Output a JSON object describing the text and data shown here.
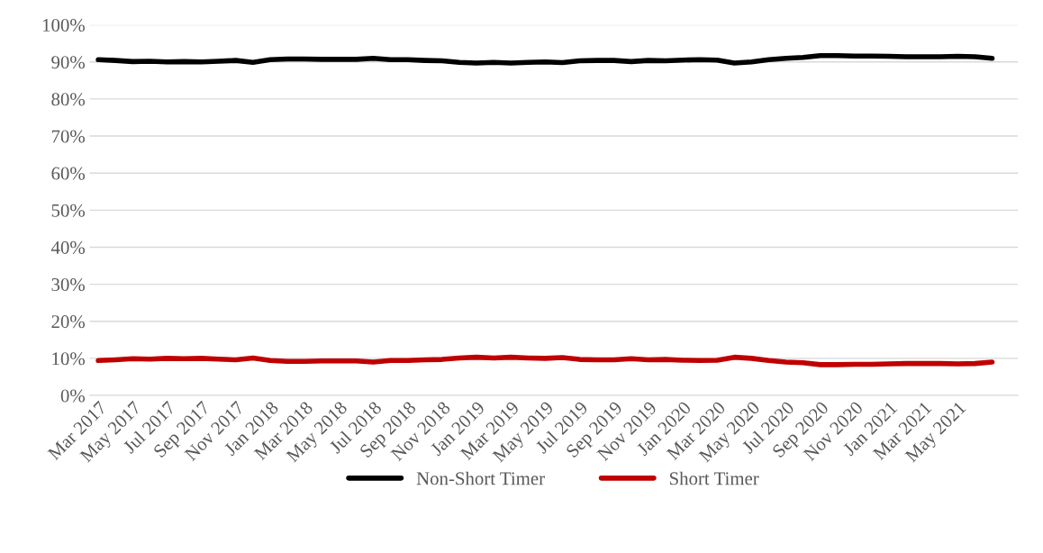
{
  "chart_data": {
    "type": "line",
    "categories": [
      "Mar 2017",
      null,
      "May 2017",
      null,
      "Jul 2017",
      null,
      "Sep 2017",
      null,
      "Nov 2017",
      null,
      "Jan 2018",
      null,
      "Mar 2018",
      null,
      "May 2018",
      null,
      "Jul 2018",
      null,
      "Sep 2018",
      null,
      "Nov 2018",
      null,
      "Jan 2019",
      null,
      "Mar 2019",
      null,
      "May 2019",
      null,
      "Jul 2019",
      null,
      "Sep 2019",
      null,
      "Nov 2019",
      null,
      "Jan 2020",
      null,
      "Mar 2020",
      null,
      "May 2020",
      null,
      "Jul 2020",
      null,
      "Sep 2020",
      null,
      "Nov 2020",
      null,
      "Jan 2021",
      null,
      "Mar 2021",
      null,
      "May 2021",
      null,
      null
    ],
    "series": [
      {
        "name": "Non-Short Timer",
        "color": "#000000",
        "values": [
          90.6,
          90.4,
          90.1,
          90.2,
          90.0,
          90.1,
          90.0,
          90.2,
          90.4,
          89.9,
          90.6,
          90.8,
          90.8,
          90.7,
          90.7,
          90.7,
          91.0,
          90.6,
          90.6,
          90.4,
          90.3,
          89.9,
          89.7,
          89.9,
          89.7,
          89.9,
          90.0,
          89.8,
          90.3,
          90.4,
          90.4,
          90.1,
          90.4,
          90.3,
          90.5,
          90.6,
          90.5,
          89.7,
          90.0,
          90.6,
          91.0,
          91.2,
          91.7,
          91.7,
          91.6,
          91.6,
          91.5,
          91.4,
          91.4,
          91.4,
          91.5,
          91.4,
          91.0
        ]
      },
      {
        "name": "Short Timer",
        "color": "#c00000",
        "values": [
          9.4,
          9.6,
          9.9,
          9.8,
          10.0,
          9.9,
          10.0,
          9.8,
          9.6,
          10.1,
          9.4,
          9.2,
          9.2,
          9.3,
          9.3,
          9.3,
          9.0,
          9.4,
          9.4,
          9.6,
          9.7,
          10.1,
          10.3,
          10.1,
          10.3,
          10.1,
          10.0,
          10.2,
          9.7,
          9.6,
          9.6,
          9.9,
          9.6,
          9.7,
          9.5,
          9.4,
          9.5,
          10.3,
          10.0,
          9.4,
          9.0,
          8.8,
          8.3,
          8.3,
          8.4,
          8.4,
          8.5,
          8.6,
          8.6,
          8.6,
          8.5,
          8.6,
          9.0
        ]
      }
    ],
    "ylim": [
      0,
      100
    ],
    "yticks": [
      {
        "value": 0,
        "label": "0%"
      },
      {
        "value": 10,
        "label": "10%"
      },
      {
        "value": 20,
        "label": "20%"
      },
      {
        "value": 30,
        "label": "30%"
      },
      {
        "value": 40,
        "label": "40%"
      },
      {
        "value": 50,
        "label": "50%"
      },
      {
        "value": 60,
        "label": "60%"
      },
      {
        "value": 70,
        "label": "70%"
      },
      {
        "value": 80,
        "label": "80%"
      },
      {
        "value": 90,
        "label": "90%"
      },
      {
        "value": 100,
        "label": "100%"
      }
    ],
    "grid": "y",
    "legend": "bottom",
    "marker": "none",
    "line_style": "solid"
  }
}
